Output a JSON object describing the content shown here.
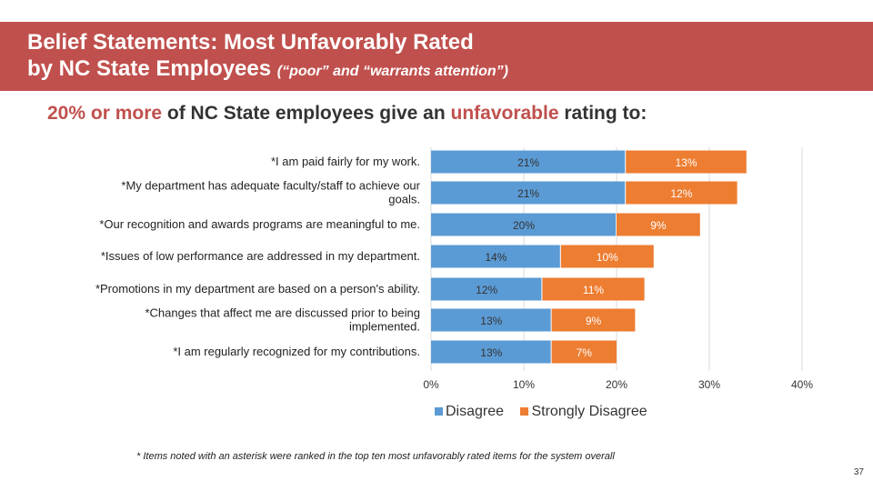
{
  "slide": {
    "title_line1": "Belief Statements: Most Unfavorably Rated",
    "title_line2": "by NC State Employees",
    "title_sub": "(“poor” and “warrants attention”)",
    "headline_prefix": "20% or more",
    "headline_mid": " of NC State employees give an ",
    "headline_accent": "unfavorable",
    "headline_suffix": " rating to:",
    "footnote": "* Items noted with an asterisk were ranked in the top ten most unfavorably rated items for the system overall",
    "page_number": "37"
  },
  "colors": {
    "header": "#c0504d",
    "disagree": "#5b9bd5",
    "strongly_disagree": "#ed7d31",
    "accent": "#c0504d"
  },
  "chart_data": {
    "type": "bar",
    "orientation": "horizontal",
    "stacked": true,
    "categories": [
      [
        "*I am paid fairly for my work."
      ],
      [
        "*My department has adequate faculty/staff to achieve our",
        "goals."
      ],
      [
        "*Our recognition and awards programs are meaningful to me."
      ],
      [
        "*Issues of low performance are addressed in my department."
      ],
      [
        "*Promotions in my department are based on a person's ability."
      ],
      [
        "*Changes that affect me are discussed prior to being",
        "implemented."
      ],
      [
        "*I am regularly recognized for my contributions."
      ]
    ],
    "series": [
      {
        "name": "Disagree",
        "values": [
          21,
          21,
          20,
          14,
          12,
          13,
          13
        ],
        "labels": [
          "21%",
          "21%",
          "20%",
          "14%",
          "12%",
          "13%",
          "13%"
        ]
      },
      {
        "name": "Strongly Disagree",
        "values": [
          13,
          12,
          9,
          10,
          11,
          9,
          7
        ],
        "labels": [
          "13%",
          "12%",
          "9%",
          "10%",
          "11%",
          "9%",
          "7%"
        ]
      }
    ],
    "xlim": [
      0,
      40
    ],
    "xticks": [
      0,
      10,
      20,
      30,
      40
    ],
    "xtick_labels": [
      "0%",
      "10%",
      "20%",
      "30%",
      "40%"
    ],
    "gridlines": true,
    "legend": [
      "Disagree",
      "Strongly Disagree"
    ],
    "legend_position": "bottom"
  }
}
